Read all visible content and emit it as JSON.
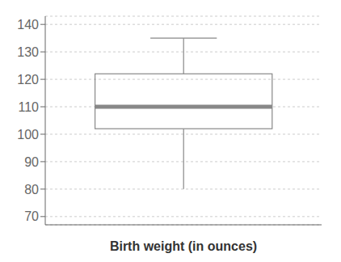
{
  "chart_data": {
    "type": "box",
    "xlabel": "Birth weight (in ounces)",
    "whisker_low": 80,
    "q1": 102,
    "median": 110,
    "q3": 122,
    "whisker_high": 135,
    "ylim": [
      67,
      143
    ],
    "yticks": [
      70,
      80,
      90,
      100,
      110,
      120,
      130,
      140
    ],
    "grid": true,
    "tick_labels": "y",
    "color": "#888888"
  }
}
